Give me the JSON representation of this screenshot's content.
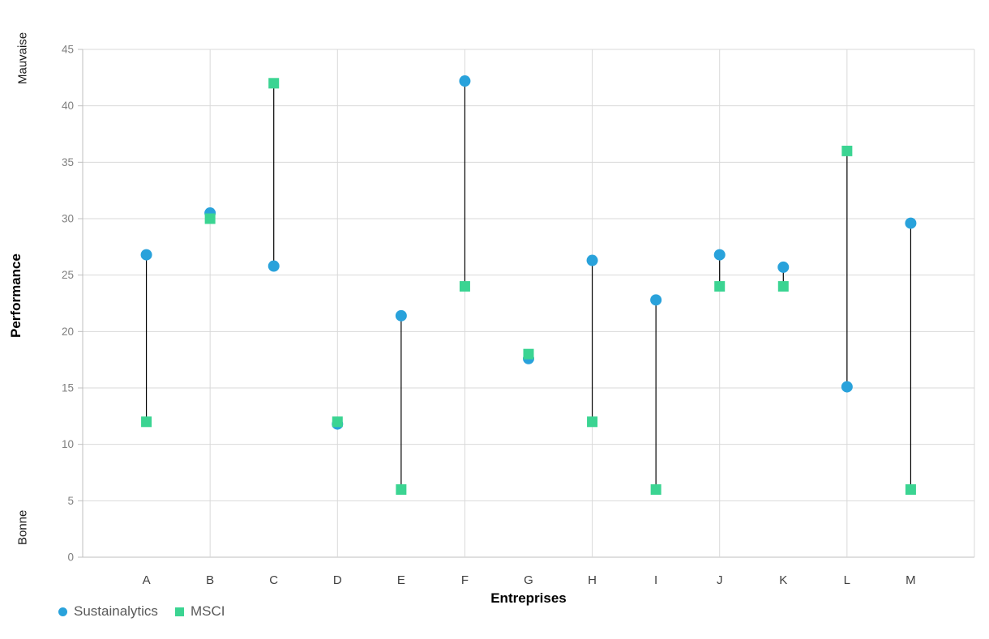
{
  "chart_data": {
    "type": "scatter",
    "title": "",
    "xlabel": "Entreprises",
    "ylabel": "Performance",
    "y_axis_annotations": {
      "top": "Mauvaise",
      "bottom": "Bonne"
    },
    "categories": [
      "A",
      "B",
      "C",
      "D",
      "E",
      "F",
      "G",
      "H",
      "I",
      "J",
      "K",
      "L",
      "M"
    ],
    "series": [
      {
        "name": "Sustainalytics",
        "marker": "circle",
        "color": "#29A2DB",
        "values": [
          26.8,
          30.5,
          25.8,
          11.8,
          21.4,
          42.2,
          17.6,
          26.3,
          22.8,
          26.8,
          25.7,
          15.1,
          29.6
        ]
      },
      {
        "name": "MSCI",
        "marker": "square",
        "color": "#3BD492",
        "values": [
          12,
          30,
          42,
          12,
          6,
          24,
          18,
          12,
          6,
          24,
          24,
          36,
          6
        ]
      }
    ],
    "ylim": [
      0,
      45
    ],
    "ytick_step": 5,
    "yticks": [
      0,
      5,
      10,
      15,
      20,
      25,
      30,
      35,
      40,
      45
    ],
    "grid": true,
    "vertical_grid_on_even_categories": true,
    "legend_position": "bottom-left",
    "connector_color": "#000000",
    "gridline_color": "#D9D9D9",
    "axis_color": "#BFBFBF",
    "tick_label_color": "#7F7F7F",
    "category_label_color": "#404040"
  }
}
